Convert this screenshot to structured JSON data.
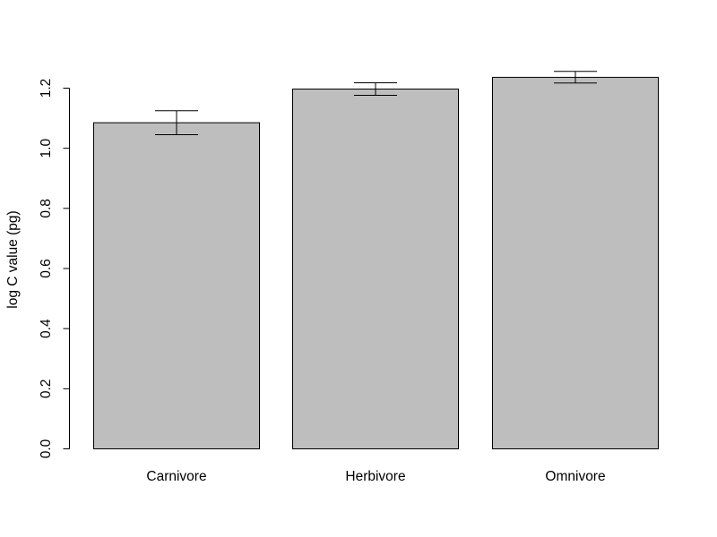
{
  "chart_data": {
    "type": "bar",
    "title": "",
    "xlabel": "",
    "ylabel": "log C value (pg)",
    "categories": [
      "Carnivore",
      "Herbivore",
      "Omnivore"
    ],
    "values": [
      1.085,
      1.197,
      1.236
    ],
    "error_upper": [
      1.125,
      1.218,
      1.256
    ],
    "error_lower": [
      1.045,
      1.176,
      1.217
    ],
    "ylim": [
      0,
      1.2
    ],
    "yticks": [
      0.0,
      0.2,
      0.4,
      0.6,
      0.8,
      1.0,
      1.2
    ],
    "ytick_labels": [
      "0.0",
      "0.2",
      "0.4",
      "0.6",
      "0.8",
      "1.0",
      "1.2"
    ],
    "grid": false,
    "legend": "none",
    "colors": {
      "bar_fill": "#bebebe",
      "bar_stroke": "#000000",
      "axis": "#000000",
      "error_bar": "#000000"
    }
  }
}
